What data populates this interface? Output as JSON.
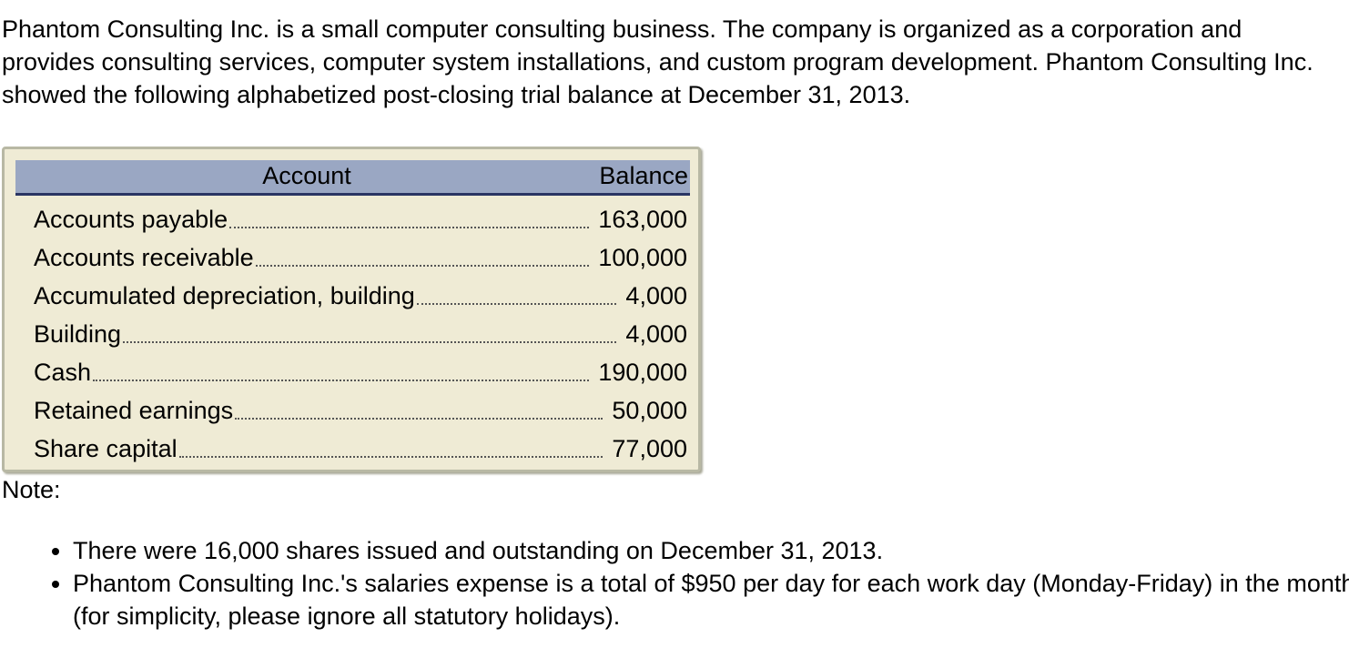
{
  "intro": "Phantom Consulting Inc. is a small computer consulting business. The company is organized as a corporation and provides consulting services, computer system installations, and custom program development. Phantom Consulting Inc. showed the following alphabetized post-closing trial balance at December 31, 2013.",
  "table": {
    "header": [
      "Account",
      "Balance"
    ],
    "rows": [
      [
        "Accounts payable",
        "163,000"
      ],
      [
        "Accounts receivable",
        "100,000"
      ],
      [
        "Accumulated depreciation, building",
        "4,000"
      ],
      [
        "Building",
        "4,000"
      ],
      [
        "Cash",
        "190,000"
      ],
      [
        "Retained earnings",
        "50,000"
      ],
      [
        "Share capital",
        "77,000"
      ]
    ]
  },
  "note": "Note:",
  "bullets": [
    "There were 16,000 shares issued and outstanding on December 31, 2013.",
    "Phantom Consulting Inc.'s salaries expense is a total of $950 per day for each work day (Monday-Friday) in the month (for simplicity, please ignore all statutory holidays)."
  ]
}
